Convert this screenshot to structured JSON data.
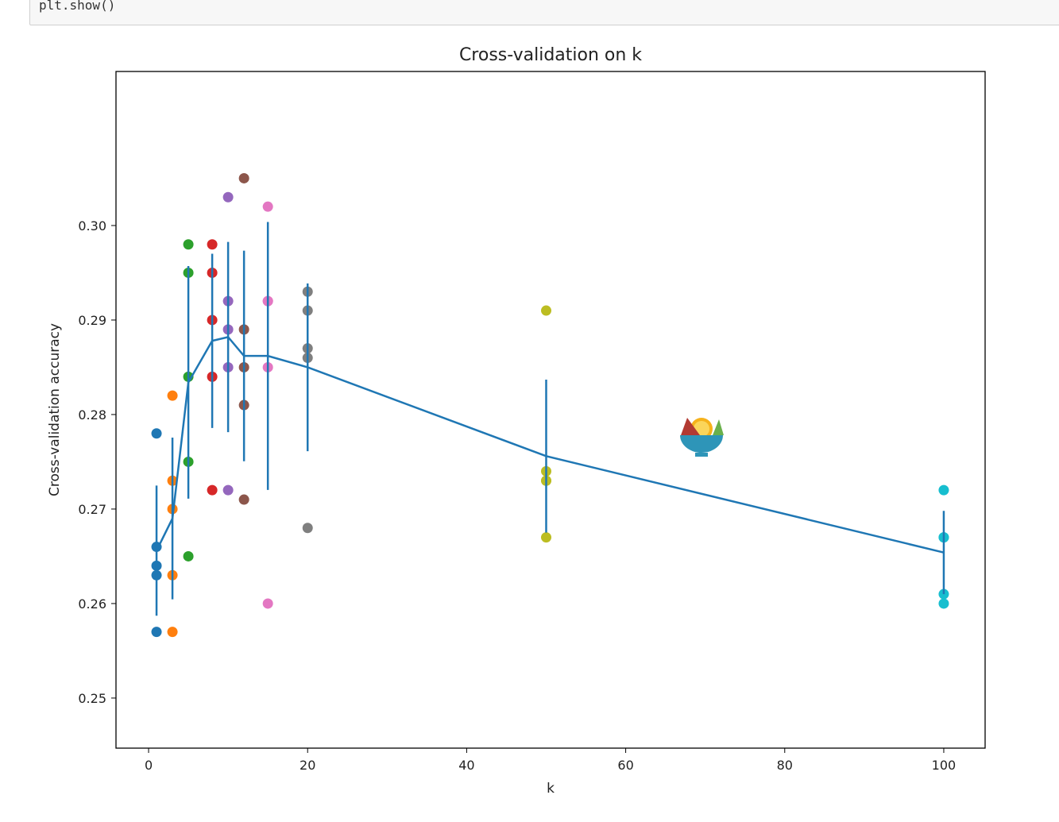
{
  "code_cell": {
    "text": "plt.show()"
  },
  "chart_data": {
    "type": "scatter",
    "title": "Cross-validation on k",
    "xlabel": "k",
    "ylabel": "Cross-validation accuracy",
    "xlim": [
      -4.1,
      105.2
    ],
    "ylim": [
      0.2447,
      0.3163
    ],
    "x_ticks": [
      0,
      20,
      40,
      60,
      80,
      100
    ],
    "y_ticks": [
      0.25,
      0.26,
      0.27,
      0.28,
      0.29,
      0.3
    ],
    "grid": false,
    "overlay": "errorbar line of mean ± std across folds",
    "colors": [
      "#1f77b4",
      "#ff7f0e",
      "#2ca02c",
      "#d62728",
      "#9467bd",
      "#8c564b",
      "#e377c2",
      "#7f7f7f",
      "#bcbd22",
      "#17becf"
    ],
    "line_color": "#1f77b4",
    "series": [
      {
        "k": 1,
        "values": [
          0.278,
          0.266,
          0.264,
          0.263,
          0.257
        ]
      },
      {
        "k": 3,
        "values": [
          0.282,
          0.273,
          0.27,
          0.263,
          0.257
        ]
      },
      {
        "k": 5,
        "values": [
          0.298,
          0.295,
          0.284,
          0.275,
          0.265
        ]
      },
      {
        "k": 8,
        "values": [
          0.298,
          0.295,
          0.29,
          0.284,
          0.272
        ]
      },
      {
        "k": 10,
        "values": [
          0.303,
          0.292,
          0.289,
          0.285,
          0.272
        ]
      },
      {
        "k": 12,
        "values": [
          0.305,
          0.289,
          0.285,
          0.281,
          0.271
        ]
      },
      {
        "k": 15,
        "values": [
          0.302,
          0.292,
          0.292,
          0.285,
          0.26
        ]
      },
      {
        "k": 20,
        "values": [
          0.293,
          0.291,
          0.287,
          0.286,
          0.268
        ]
      },
      {
        "k": 50,
        "values": [
          0.291,
          0.274,
          0.273,
          0.273,
          0.267
        ]
      },
      {
        "k": 100,
        "values": [
          0.272,
          0.267,
          0.267,
          0.261,
          0.26
        ]
      }
    ]
  }
}
